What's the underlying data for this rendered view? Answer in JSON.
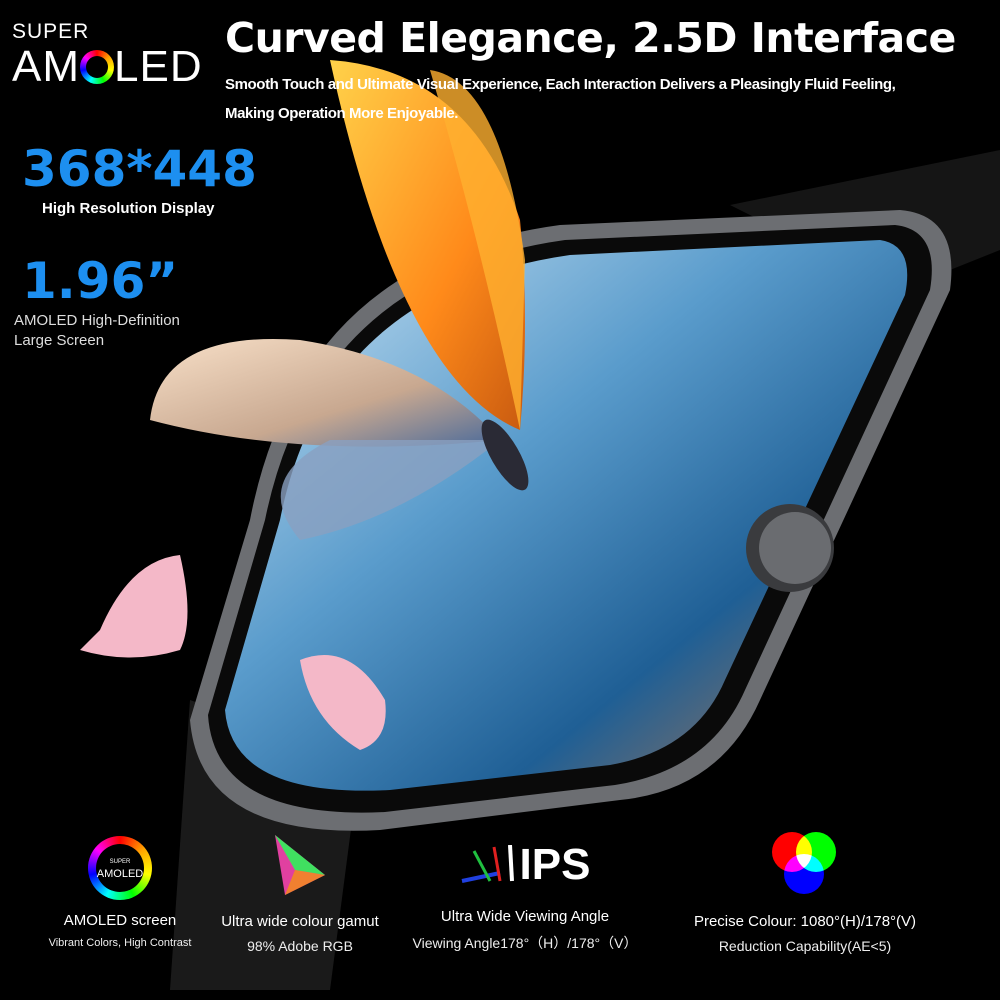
{
  "logo": {
    "super": "SUPER",
    "amoled_a": "AM",
    "amoled_b": "LED"
  },
  "headline": "Curved Elegance, 2.5D Interface",
  "subtitle": "Smooth Touch and Ultimate Visual Experience, Each Interaction Delivers a Pleasingly Fluid Feeling, Making Operation More Enjoyable.",
  "resolution": {
    "value": "368*448",
    "label": "High Resolution Display"
  },
  "screen_size": {
    "value": "1.96”",
    "label_1": "AMOLED High-Definition",
    "label_2": "Large Screen"
  },
  "features": [
    {
      "icon": "super-amoled-ring-icon",
      "line1": "AMOLED screen",
      "line2": "Vibrant Colors, High Contrast",
      "logo_super": "SUPER",
      "logo_text": "AMOLED"
    },
    {
      "icon": "colour-gamut-triangle-icon",
      "line1": "Ultra wide colour gamut",
      "line2": "98% Adobe RGB"
    },
    {
      "icon": "ips-icon",
      "icon_text": "IPS",
      "line1": "Ultra Wide Viewing Angle",
      "line2": "Viewing Angle178°（H）/178°（V）"
    },
    {
      "icon": "rgb-circles-icon",
      "line1": "Precise Colour: 1080°(H)/178°(V)",
      "line2": "Reduction Capability(AE<5)"
    }
  ],
  "colors": {
    "accent_blue": "#1d8ff0",
    "background": "#000000"
  }
}
